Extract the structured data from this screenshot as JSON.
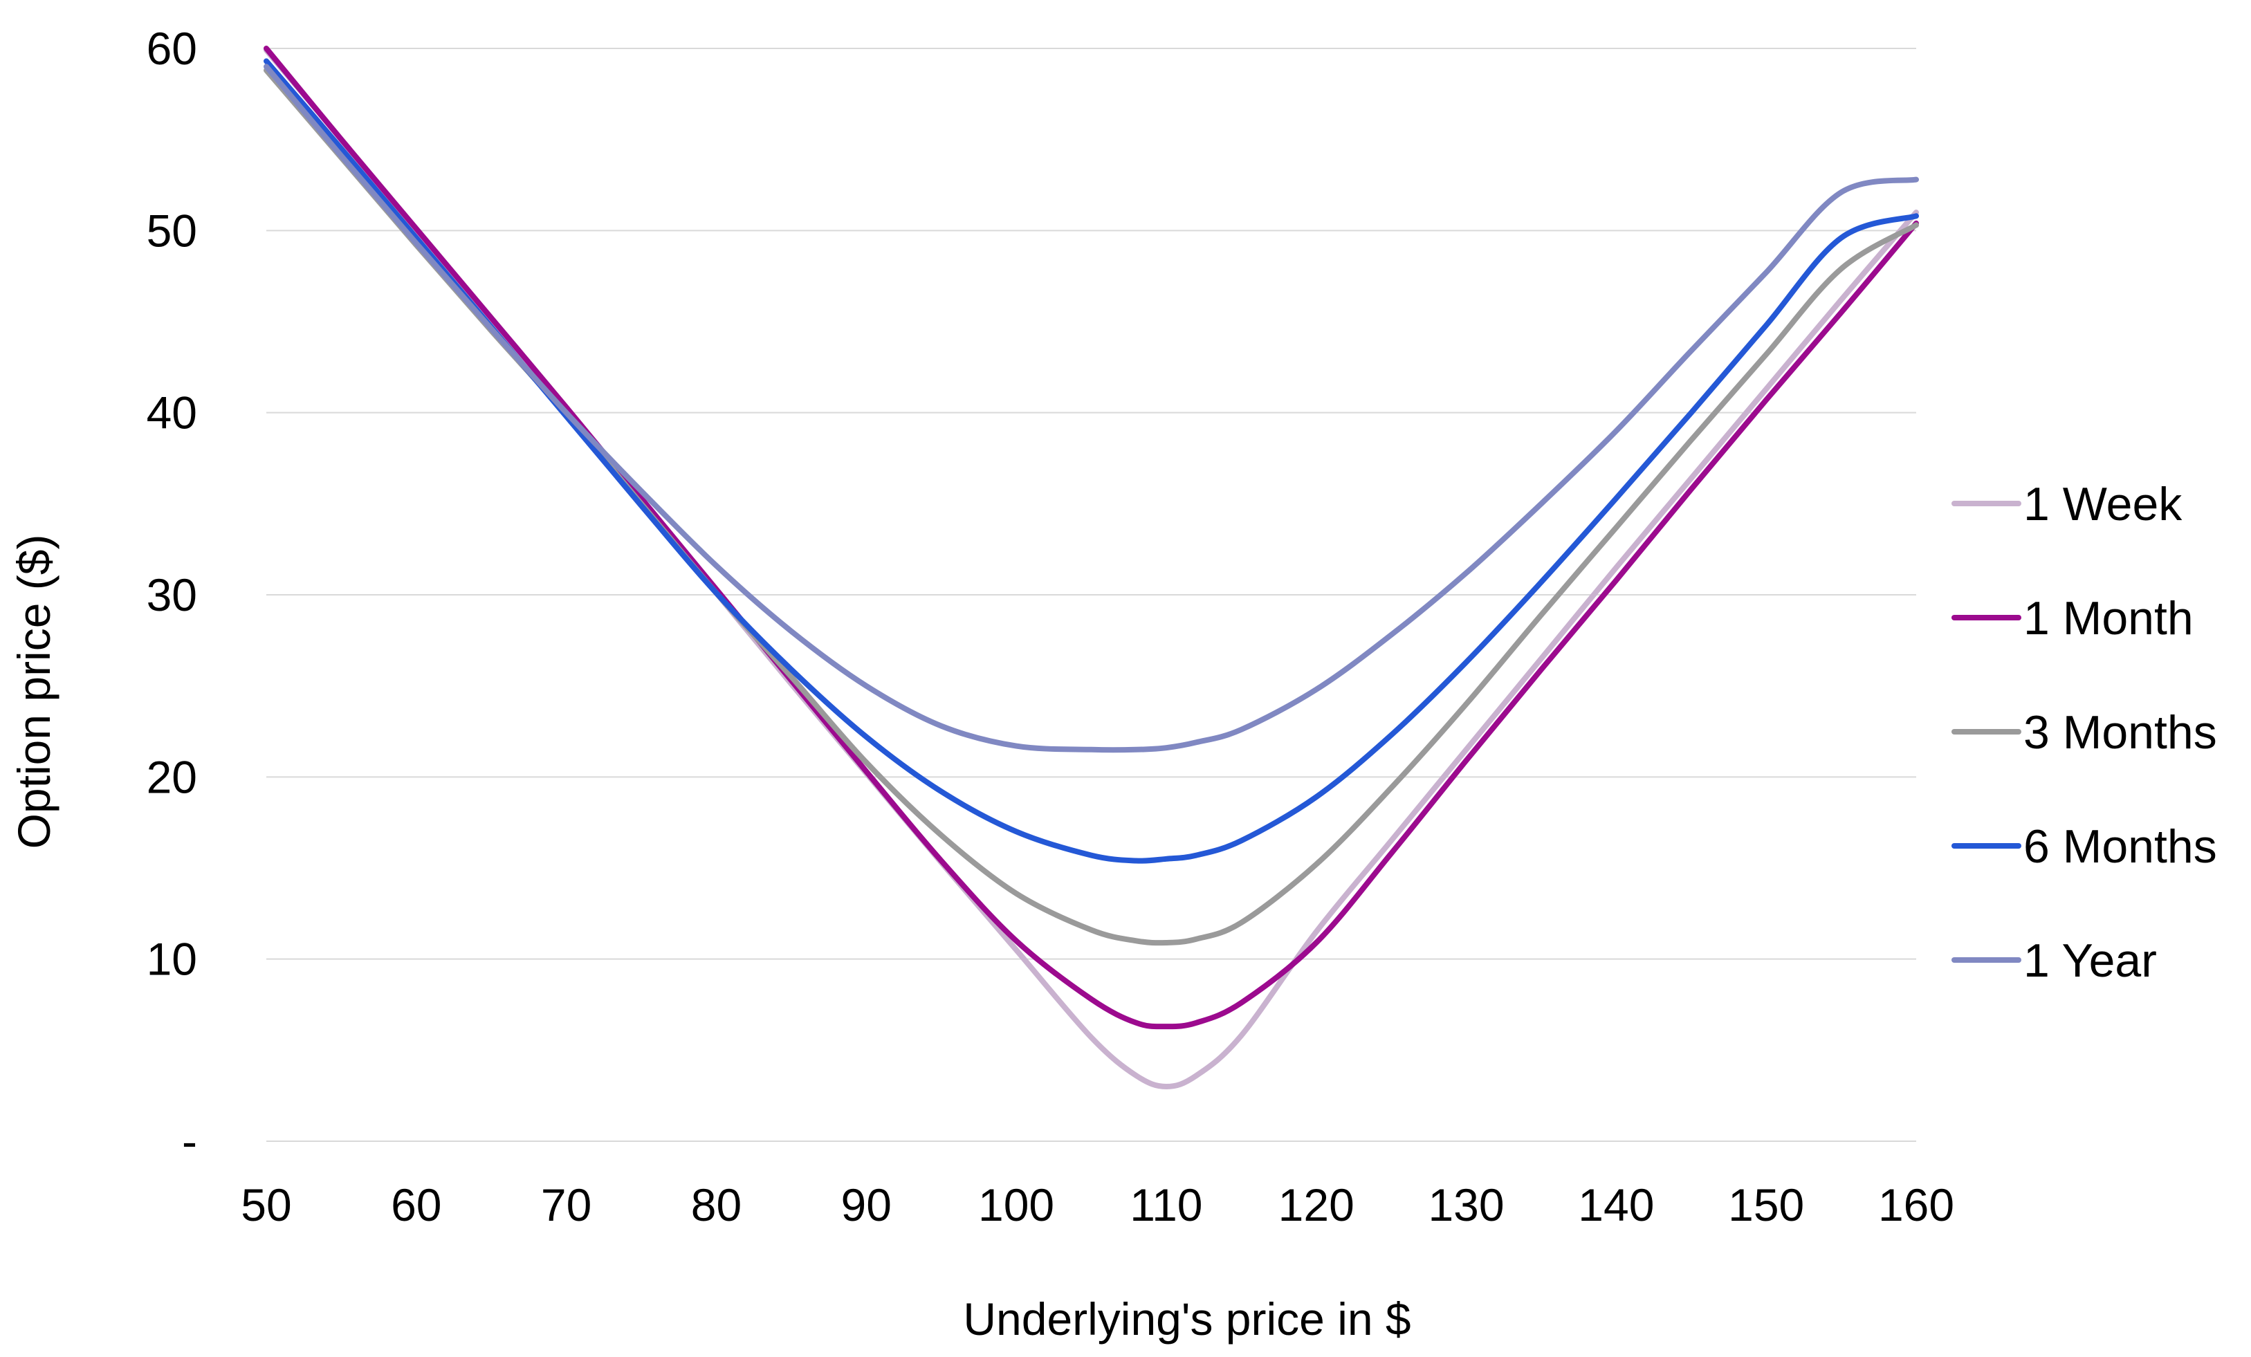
{
  "chart_data": {
    "type": "line",
    "title": "",
    "xlabel": "Underlying's price in $",
    "ylabel": "Option price ($)",
    "xlim": [
      50,
      160
    ],
    "ylim": [
      0,
      60
    ],
    "x_ticks": [
      50,
      60,
      70,
      80,
      90,
      100,
      110,
      120,
      130,
      140,
      150,
      160
    ],
    "x_tick_labels": [
      "50",
      "60",
      "70",
      "80",
      "90",
      "100",
      "110",
      "120",
      "130",
      "140",
      "150",
      "160"
    ],
    "y_ticks": [
      0,
      10,
      20,
      30,
      40,
      50,
      60
    ],
    "y_tick_labels": [
      "-",
      "10",
      "20",
      "30",
      "40",
      "50",
      "60"
    ],
    "grid": "horizontal",
    "legend_position": "right",
    "x": [
      50,
      55,
      60,
      65,
      70,
      75,
      80,
      85,
      90,
      95,
      100,
      105,
      108,
      110,
      112,
      115,
      120,
      125,
      130,
      135,
      140,
      145,
      150,
      155,
      160
    ],
    "series": [
      {
        "name": "1 Week",
        "color": "#c9b2cf",
        "values": [
          59.9,
          55.0,
          50.0,
          45.1,
          40.1,
          35.1,
          30.1,
          25.1,
          20.2,
          15.3,
          10.5,
          5.7,
          3.6,
          3.0,
          3.6,
          5.8,
          11.5,
          16.5,
          21.5,
          26.5,
          31.5,
          36.4,
          41.3,
          46.2,
          51.0
        ]
      },
      {
        "name": "1 Month",
        "color": "#9c0a8e",
        "values": [
          60.0,
          55.0,
          50.1,
          45.2,
          40.3,
          35.3,
          30.3,
          25.3,
          20.3,
          15.4,
          11.0,
          7.8,
          6.5,
          6.3,
          6.5,
          7.6,
          10.9,
          15.8,
          20.9,
          25.9,
          30.8,
          35.8,
          40.7,
          45.5,
          50.4
        ]
      },
      {
        "name": "3 Months",
        "color": "#9a9a9a",
        "values": [
          58.8,
          54.0,
          49.2,
          44.5,
          39.9,
          35.0,
          30.1,
          25.5,
          20.8,
          16.8,
          13.6,
          11.6,
          11.0,
          10.9,
          11.1,
          12.0,
          15.2,
          19.4,
          24.0,
          28.9,
          33.7,
          38.5,
          43.2,
          47.9,
          50.3
        ]
      },
      {
        "name": "6 Months",
        "color": "#2458d6",
        "values": [
          59.3,
          54.5,
          49.6,
          44.7,
          39.8,
          34.9,
          30.1,
          25.9,
          22.2,
          19.2,
          17.0,
          15.7,
          15.4,
          15.5,
          15.7,
          16.5,
          18.9,
          22.3,
          26.3,
          30.7,
          35.3,
          40.0,
          44.8,
          49.6,
          50.8
        ]
      },
      {
        "name": "1 Year",
        "color": "#8088c2",
        "values": [
          59.0,
          54.1,
          49.3,
          44.6,
          40.0,
          35.7,
          31.6,
          28.0,
          25.0,
          22.8,
          21.7,
          21.5,
          21.5,
          21.6,
          21.9,
          22.6,
          24.8,
          27.8,
          31.2,
          35.0,
          39.0,
          43.4,
          47.7,
          52.1,
          52.8
        ]
      }
    ]
  }
}
